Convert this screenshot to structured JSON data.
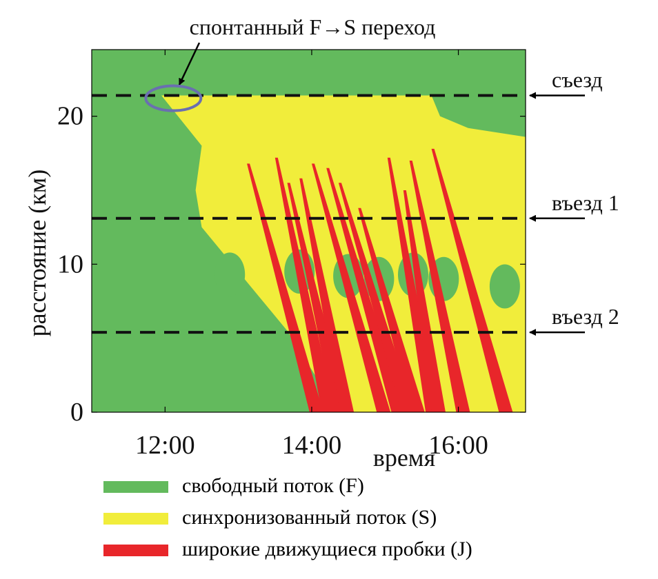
{
  "chart_data": {
    "type": "heatmap",
    "title": "",
    "xlabel": "время",
    "ylabel": "расстояние (км)",
    "x_ticks": [
      "12:00",
      "14:00",
      "16:00"
    ],
    "y_ticks": [
      "0",
      "10",
      "20"
    ],
    "xlim": [
      "11:00",
      "16:55"
    ],
    "ylim": [
      0,
      24.5
    ],
    "grid": false,
    "colors": {
      "free": "#63ba5d",
      "sync": "#f1ed3b",
      "jam": "#e8262a"
    },
    "legend": [
      {
        "state": "F",
        "label": "свободный поток (F)",
        "color": "#63ba5d"
      },
      {
        "state": "S",
        "label": "синхронизованный поток (S)",
        "color": "#f1ed3b"
      },
      {
        "state": "J",
        "label": "широкие движущиеся пробки (J)",
        "color": "#e8262a"
      }
    ],
    "detector_lines": [
      {
        "label": "съезд",
        "km": 21.4
      },
      {
        "label": "въезд 1",
        "km": 13.1
      },
      {
        "label": "въезд 2",
        "km": 5.4
      }
    ],
    "annotation": {
      "text": "спонтанный F→S переход",
      "time": "12:00",
      "km": 21.4
    },
    "sync_region": {
      "upper_front": [
        [
          "11:57",
          21.4
        ],
        [
          "15:38",
          21.4
        ],
        [
          "15:45",
          20.0
        ],
        [
          "16:08",
          19.2
        ],
        [
          "16:55",
          18.6
        ]
      ],
      "left_front": [
        [
          "11:57",
          21.4
        ],
        [
          "12:30",
          18.0
        ],
        [
          "12:25",
          15.0
        ],
        [
          "12:30",
          12.5
        ],
        [
          "12:50",
          10.5
        ],
        [
          "13:40",
          5.5
        ],
        [
          "14:05",
          2.2
        ],
        [
          "14:30",
          0
        ]
      ]
    },
    "free_islands": [
      {
        "center": [
          "12:53",
          9.3
        ],
        "note": ""
      },
      {
        "center": [
          "13:50",
          9.5
        ],
        "note": ""
      },
      {
        "center": [
          "14:30",
          9.2
        ],
        "note": ""
      },
      {
        "center": [
          "14:55",
          9.0
        ],
        "note": ""
      },
      {
        "center": [
          "15:23",
          9.3
        ],
        "note": ""
      },
      {
        "center": [
          "15:48",
          9.0
        ],
        "note": ""
      },
      {
        "center": [
          "16:38",
          8.5
        ],
        "note": ""
      }
    ],
    "jam_streaks": [
      {
        "start": [
          "13:07",
          16.8
        ],
        "end": [
          "14:05",
          0
        ]
      },
      {
        "start": [
          "13:30",
          17.2
        ],
        "end": [
          "14:15",
          0
        ]
      },
      {
        "start": [
          "13:40",
          15.5
        ],
        "end": [
          "14:25",
          0
        ]
      },
      {
        "start": [
          "13:50",
          15.8
        ],
        "end": [
          "14:30",
          0
        ]
      },
      {
        "start": [
          "14:00",
          16.8
        ],
        "end": [
          "15:00",
          0
        ]
      },
      {
        "start": [
          "14:12",
          16.5
        ],
        "end": [
          "15:12",
          0
        ]
      },
      {
        "start": [
          "14:22",
          15.5
        ],
        "end": [
          "15:20",
          0
        ]
      },
      {
        "start": [
          "14:38",
          13.8
        ],
        "end": [
          "15:28",
          0
        ]
      },
      {
        "start": [
          "15:02",
          17.2
        ],
        "end": [
          "15:40",
          0
        ]
      },
      {
        "start": [
          "15:15",
          15.0
        ],
        "end": [
          "15:45",
          0
        ]
      },
      {
        "start": [
          "15:20",
          17.0
        ],
        "end": [
          "16:05",
          0
        ]
      },
      {
        "start": [
          "15:38",
          17.8
        ],
        "end": [
          "16:40",
          0
        ]
      }
    ]
  }
}
